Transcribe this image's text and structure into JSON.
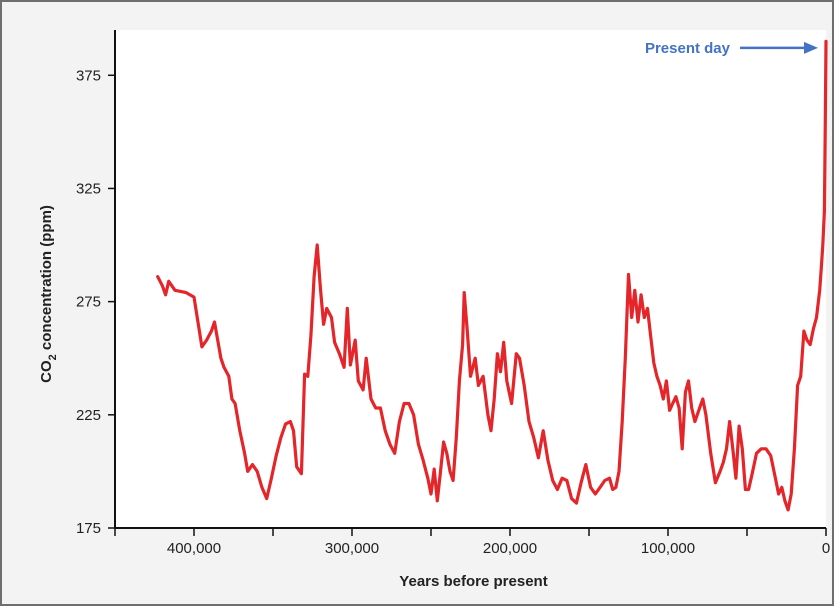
{
  "chart_data": {
    "type": "line",
    "title": "",
    "xlabel": "Years before present",
    "ylabel": {
      "prefix": "CO",
      "subscript": "2",
      "suffix": " concentration (ppm)"
    },
    "xlim": [
      450000,
      0
    ],
    "ylim": [
      175,
      395
    ],
    "x_axis_reversed": true,
    "grid": false,
    "legend": "none",
    "x_ticks": [
      {
        "value": 400000,
        "label": "400,000"
      },
      {
        "value": 300000,
        "label": "300,000"
      },
      {
        "value": 200000,
        "label": "200,000"
      },
      {
        "value": 100000,
        "label": "100,000"
      },
      {
        "value": 0,
        "label": "0"
      }
    ],
    "x_minor_ticks": [
      450000,
      350000,
      250000,
      150000,
      50000
    ],
    "y_ticks": [
      {
        "value": 175,
        "label": "175"
      },
      {
        "value": 225,
        "label": "225"
      },
      {
        "value": 275,
        "label": "275"
      },
      {
        "value": 325,
        "label": "325"
      },
      {
        "value": 375,
        "label": "375"
      }
    ],
    "series": [
      {
        "color": "#e4262a",
        "points": [
          [
            423000,
            286
          ],
          [
            420000,
            282
          ],
          [
            418000,
            278
          ],
          [
            416000,
            284
          ],
          [
            412000,
            280
          ],
          [
            405000,
            279
          ],
          [
            400000,
            277
          ],
          [
            395000,
            255
          ],
          [
            392000,
            258
          ],
          [
            389000,
            262
          ],
          [
            387000,
            266
          ],
          [
            385000,
            258
          ],
          [
            383000,
            250
          ],
          [
            381000,
            246
          ],
          [
            378000,
            242
          ],
          [
            376000,
            232
          ],
          [
            374000,
            230
          ],
          [
            371000,
            218
          ],
          [
            368000,
            208
          ],
          [
            366000,
            200
          ],
          [
            363000,
            203
          ],
          [
            360000,
            200
          ],
          [
            357000,
            193
          ],
          [
            354000,
            188
          ],
          [
            351000,
            197
          ],
          [
            348000,
            207
          ],
          [
            345000,
            215
          ],
          [
            342000,
            221
          ],
          [
            339000,
            222
          ],
          [
            337000,
            218
          ],
          [
            335000,
            202
          ],
          [
            332000,
            199
          ],
          [
            330000,
            243
          ],
          [
            328000,
            242
          ],
          [
            326000,
            260
          ],
          [
            324000,
            286
          ],
          [
            322000,
            300
          ],
          [
            320000,
            281
          ],
          [
            318000,
            265
          ],
          [
            316000,
            272
          ],
          [
            313000,
            268
          ],
          [
            311000,
            257
          ],
          [
            308000,
            252
          ],
          [
            305000,
            246
          ],
          [
            303000,
            272
          ],
          [
            301000,
            247
          ],
          [
            298000,
            258
          ],
          [
            296000,
            240
          ],
          [
            293000,
            236
          ],
          [
            291000,
            250
          ],
          [
            288000,
            232
          ],
          [
            285000,
            228
          ],
          [
            282000,
            228
          ],
          [
            279000,
            218
          ],
          [
            276000,
            212
          ],
          [
            273000,
            208
          ],
          [
            270000,
            222
          ],
          [
            267000,
            230
          ],
          [
            264000,
            230
          ],
          [
            261000,
            225
          ],
          [
            258000,
            212
          ],
          [
            255000,
            205
          ],
          [
            252000,
            197
          ],
          [
            250000,
            190
          ],
          [
            248000,
            201
          ],
          [
            246000,
            187
          ],
          [
            244000,
            200
          ],
          [
            242000,
            213
          ],
          [
            240000,
            208
          ],
          [
            238000,
            200
          ],
          [
            236000,
            196
          ],
          [
            234000,
            215
          ],
          [
            232000,
            240
          ],
          [
            230000,
            256
          ],
          [
            229000,
            279
          ],
          [
            227000,
            262
          ],
          [
            225000,
            242
          ],
          [
            222000,
            250
          ],
          [
            220000,
            238
          ],
          [
            217000,
            242
          ],
          [
            214000,
            225
          ],
          [
            212000,
            218
          ],
          [
            210000,
            232
          ],
          [
            208000,
            252
          ],
          [
            206000,
            244
          ],
          [
            204000,
            257
          ],
          [
            202000,
            240
          ],
          [
            199000,
            230
          ],
          [
            196000,
            252
          ],
          [
            194000,
            250
          ],
          [
            191000,
            238
          ],
          [
            188000,
            222
          ],
          [
            185000,
            215
          ],
          [
            182000,
            206
          ],
          [
            179000,
            218
          ],
          [
            176000,
            205
          ],
          [
            173000,
            196
          ],
          [
            170000,
            192
          ],
          [
            167000,
            197
          ],
          [
            164000,
            196
          ],
          [
            161000,
            188
          ],
          [
            158000,
            186
          ],
          [
            155000,
            195
          ],
          [
            152000,
            203
          ],
          [
            149000,
            193
          ],
          [
            146000,
            190
          ],
          [
            143000,
            193
          ],
          [
            140000,
            196
          ],
          [
            137000,
            197
          ],
          [
            135000,
            192
          ],
          [
            133000,
            193
          ],
          [
            131000,
            200
          ],
          [
            129000,
            222
          ],
          [
            127000,
            250
          ],
          [
            125000,
            287
          ],
          [
            123000,
            268
          ],
          [
            121000,
            280
          ],
          [
            119000,
            266
          ],
          [
            117000,
            278
          ],
          [
            115000,
            268
          ],
          [
            113000,
            272
          ],
          [
            111000,
            260
          ],
          [
            109000,
            248
          ],
          [
            107000,
            242
          ],
          [
            105000,
            238
          ],
          [
            103000,
            232
          ],
          [
            101000,
            240
          ],
          [
            99000,
            227
          ],
          [
            97000,
            230
          ],
          [
            95000,
            233
          ],
          [
            93000,
            228
          ],
          [
            91000,
            210
          ],
          [
            89000,
            235
          ],
          [
            87000,
            240
          ],
          [
            85000,
            228
          ],
          [
            83000,
            222
          ],
          [
            80000,
            228
          ],
          [
            78000,
            232
          ],
          [
            76000,
            225
          ],
          [
            73000,
            208
          ],
          [
            70000,
            195
          ],
          [
            67000,
            200
          ],
          [
            65000,
            204
          ],
          [
            63000,
            210
          ],
          [
            61000,
            222
          ],
          [
            59000,
            210
          ],
          [
            57000,
            197
          ],
          [
            55000,
            220
          ],
          [
            53000,
            210
          ],
          [
            51000,
            192
          ],
          [
            49000,
            192
          ],
          [
            47000,
            198
          ],
          [
            44000,
            208
          ],
          [
            41000,
            210
          ],
          [
            38000,
            210
          ],
          [
            35000,
            207
          ],
          [
            32000,
            197
          ],
          [
            30000,
            190
          ],
          [
            28000,
            193
          ],
          [
            26000,
            187
          ],
          [
            24000,
            183
          ],
          [
            22000,
            190
          ],
          [
            20000,
            210
          ],
          [
            18000,
            238
          ],
          [
            16000,
            242
          ],
          [
            14000,
            262
          ],
          [
            12000,
            258
          ],
          [
            10000,
            256
          ],
          [
            8000,
            263
          ],
          [
            6000,
            268
          ],
          [
            4000,
            280
          ],
          [
            3000,
            290
          ],
          [
            2000,
            300
          ],
          [
            1000,
            315
          ],
          [
            500,
            350
          ],
          [
            0,
            390
          ]
        ]
      }
    ],
    "annotations": [
      {
        "text": "Present day",
        "color": "#4472c4",
        "target": [
          0,
          388
        ]
      }
    ]
  }
}
